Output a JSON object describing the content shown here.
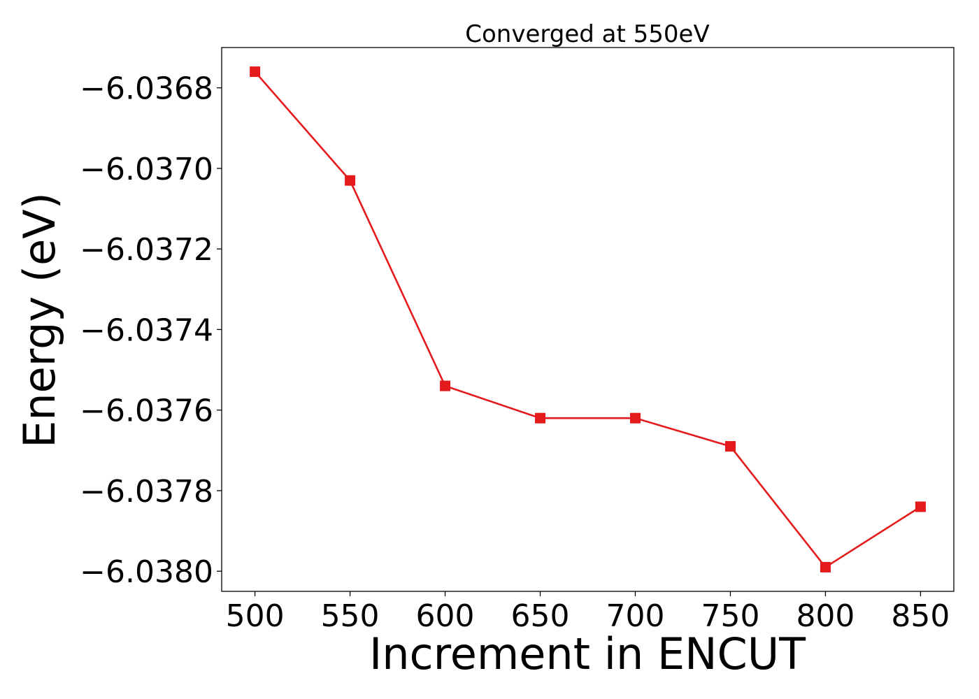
{
  "chart_data": {
    "type": "line",
    "title": "Converged at 550eV",
    "xlabel": "Increment in ENCUT",
    "ylabel": "Energy (eV)",
    "x": [
      500,
      550,
      600,
      650,
      700,
      750,
      800,
      850
    ],
    "series": [
      {
        "values": [
          -6.03676,
          -6.03703,
          -6.03754,
          -6.03762,
          -6.03762,
          -6.03769,
          -6.03799,
          -6.03784
        ],
        "color": "#e41a1c",
        "marker": "square"
      }
    ],
    "xticks": [
      500,
      550,
      600,
      650,
      700,
      750,
      800,
      850
    ],
    "xtick_labels": [
      "500",
      "550",
      "600",
      "650",
      "700",
      "750",
      "800",
      "850"
    ],
    "yticks": [
      -6.0368,
      -6.037,
      -6.0372,
      -6.0374,
      -6.0376,
      -6.0378,
      -6.038
    ],
    "ytick_labels": [
      "−6.0368",
      "−6.0370",
      "−6.0372",
      "−6.0374",
      "−6.0376",
      "−6.0378",
      "−6.0380"
    ],
    "xlim": [
      482.5,
      867.5
    ],
    "ylim": [
      -6.03805,
      -6.0367
    ],
    "grid": false,
    "legend": "none"
  }
}
